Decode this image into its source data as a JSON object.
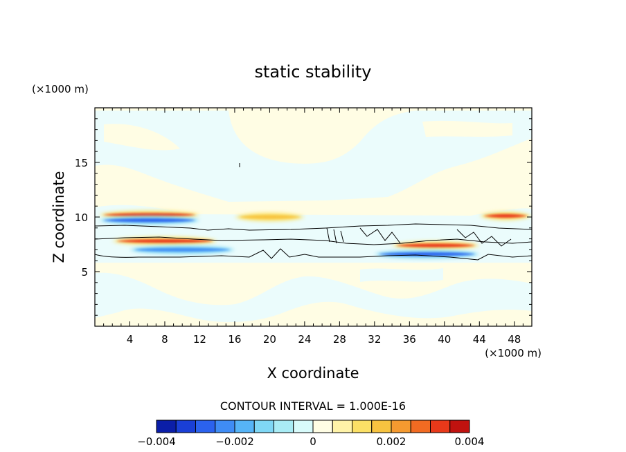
{
  "chart_data": {
    "type": "heatmap",
    "title": "static stability",
    "xlabel": "X coordinate",
    "ylabel": "Z coordinate",
    "x_unit": "(×1000 m)",
    "y_unit": "(×1000 m)",
    "xlim": [
      0,
      50
    ],
    "ylim": [
      0,
      20
    ],
    "x_ticks": [
      4,
      8,
      12,
      16,
      20,
      24,
      28,
      32,
      36,
      40,
      44,
      48
    ],
    "y_ticks": [
      5,
      10,
      15
    ],
    "contour_interval_text": "CONTOUR INTERVAL = 1.000E-16",
    "colorbar": {
      "min": -0.004,
      "max": 0.004,
      "tick_values": [
        -0.004,
        -0.002,
        0,
        0.002,
        0.004
      ],
      "tick_labels": [
        "−0.004",
        "−0.002",
        "0",
        "0.002",
        "0.004"
      ],
      "colors": [
        "#0b1ea8",
        "#1a3fd6",
        "#2b62ee",
        "#3f8cf5",
        "#56b4f7",
        "#7fd7f5",
        "#a9ecf5",
        "#d8fbfb",
        "#fffde4",
        "#fff3a8",
        "#fbe066",
        "#f7c340",
        "#f59a30",
        "#f26b22",
        "#e8391a",
        "#c0120f"
      ]
    },
    "bands": [
      {
        "x": [
          0.5,
          12
        ],
        "z": 10.2,
        "value": 0.0032
      },
      {
        "x": [
          0.5,
          12
        ],
        "z": 9.7,
        "value": -0.0026
      },
      {
        "x": [
          16,
          24
        ],
        "z": 10.0,
        "value": 0.0015
      },
      {
        "x": [
          44,
          50
        ],
        "z": 10.1,
        "value": 0.003
      },
      {
        "x": [
          2,
          14
        ],
        "z": 7.8,
        "value": 0.003
      },
      {
        "x": [
          4,
          16
        ],
        "z": 7.0,
        "value": -0.0024
      },
      {
        "x": [
          34,
          44
        ],
        "z": 7.4,
        "value": 0.0032
      },
      {
        "x": [
          32,
          44
        ],
        "z": 6.6,
        "value": -0.0026
      }
    ]
  }
}
